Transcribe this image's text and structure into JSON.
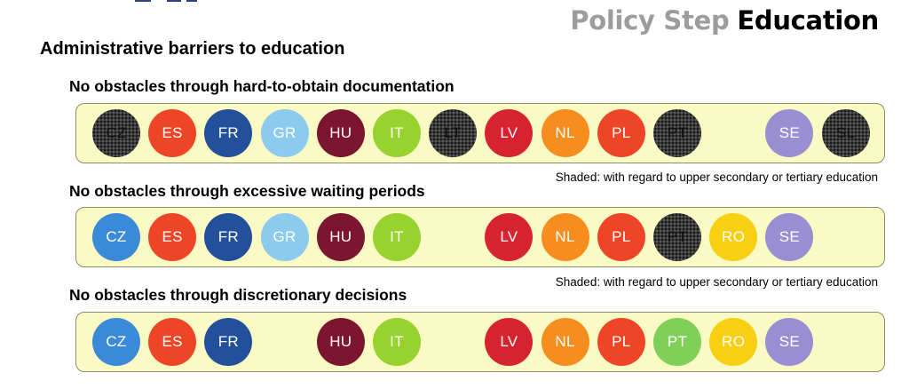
{
  "header": {
    "title_prefix": "Policy Step",
    "title_main": "Education"
  },
  "main_heading": "Administrative barriers to education",
  "colors": {
    "CZ": "#3b8ad8",
    "ES": "#ee4526",
    "FR": "#23509a",
    "GR": "#8ccbee",
    "HU": "#7c1530",
    "IT": "#98d22f",
    "LT": "#3a3a3a",
    "LV": "#d72330",
    "NL": "#f58e1e",
    "PL": "#ee4526",
    "PT": "#7fcf58",
    "RO": "#f7cf13",
    "SE": "#9a8ed3",
    "SL": "#3a3a3a"
  },
  "sections": [
    {
      "title": "No obstacles through hard-to-obtain documentation",
      "note": "Shaded: with regard to upper secondary or tertiary education",
      "items": [
        {
          "code": "CZ",
          "slot": 0,
          "shaded": true
        },
        {
          "code": "ES",
          "slot": 1,
          "shaded": false
        },
        {
          "code": "FR",
          "slot": 2,
          "shaded": false
        },
        {
          "code": "GR",
          "slot": 3,
          "shaded": false
        },
        {
          "code": "HU",
          "slot": 4,
          "shaded": false
        },
        {
          "code": "IT",
          "slot": 5,
          "shaded": false
        },
        {
          "code": "LT",
          "slot": 6,
          "shaded": true
        },
        {
          "code": "LV",
          "slot": 7,
          "shaded": false
        },
        {
          "code": "NL",
          "slot": 8,
          "shaded": false
        },
        {
          "code": "PL",
          "slot": 9,
          "shaded": false
        },
        {
          "code": "PT",
          "slot": 10,
          "shaded": true
        },
        {
          "code": "SE",
          "slot": 12,
          "shaded": false
        },
        {
          "code": "SL",
          "slot": 13,
          "shaded": true
        }
      ]
    },
    {
      "title": "No obstacles through excessive waiting periods",
      "note": "Shaded: with regard to upper secondary or tertiary education",
      "items": [
        {
          "code": "CZ",
          "slot": 0,
          "shaded": false
        },
        {
          "code": "ES",
          "slot": 1,
          "shaded": false
        },
        {
          "code": "FR",
          "slot": 2,
          "shaded": false
        },
        {
          "code": "GR",
          "slot": 3,
          "shaded": false
        },
        {
          "code": "HU",
          "slot": 4,
          "shaded": false
        },
        {
          "code": "IT",
          "slot": 5,
          "shaded": false
        },
        {
          "code": "LV",
          "slot": 7,
          "shaded": false
        },
        {
          "code": "NL",
          "slot": 8,
          "shaded": false
        },
        {
          "code": "PL",
          "slot": 9,
          "shaded": false
        },
        {
          "code": "PT",
          "slot": 10,
          "shaded": true
        },
        {
          "code": "RO",
          "slot": 11,
          "shaded": false
        },
        {
          "code": "SE",
          "slot": 12,
          "shaded": false
        }
      ]
    },
    {
      "title": "No obstacles through discretionary decisions",
      "items": [
        {
          "code": "CZ",
          "slot": 0,
          "shaded": false
        },
        {
          "code": "ES",
          "slot": 1,
          "shaded": false
        },
        {
          "code": "FR",
          "slot": 2,
          "shaded": false
        },
        {
          "code": "HU",
          "slot": 4,
          "shaded": false
        },
        {
          "code": "IT",
          "slot": 5,
          "shaded": false
        },
        {
          "code": "LV",
          "slot": 7,
          "shaded": false
        },
        {
          "code": "NL",
          "slot": 8,
          "shaded": false
        },
        {
          "code": "PL",
          "slot": 9,
          "shaded": false
        },
        {
          "code": "PT",
          "slot": 10,
          "shaded": false
        },
        {
          "code": "RO",
          "slot": 11,
          "shaded": false
        },
        {
          "code": "SE",
          "slot": 12,
          "shaded": false
        }
      ]
    }
  ]
}
